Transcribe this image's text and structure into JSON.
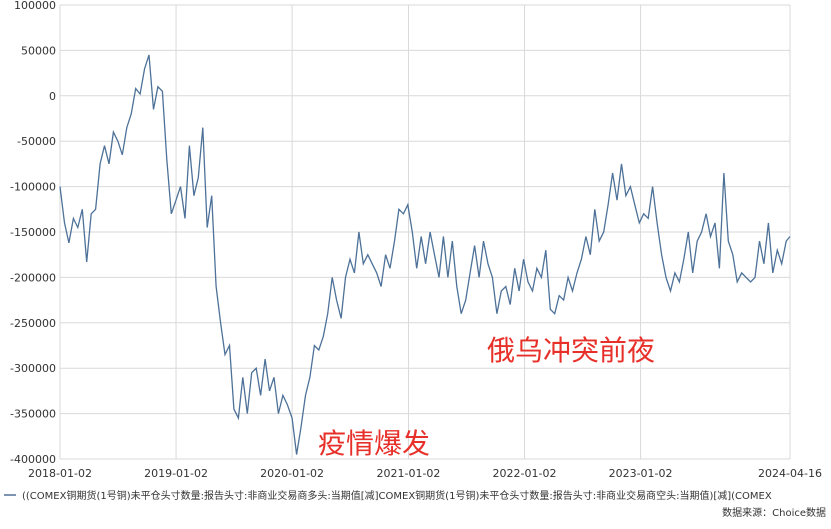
{
  "chart_data": {
    "type": "line",
    "x": [
      "2018-01-02",
      "2018-01-16",
      "2018-01-30",
      "2018-02-13",
      "2018-02-27",
      "2018-03-13",
      "2018-03-27",
      "2018-04-10",
      "2018-04-24",
      "2018-05-08",
      "2018-05-22",
      "2018-06-05",
      "2018-06-19",
      "2018-07-03",
      "2018-07-17",
      "2018-07-31",
      "2018-08-14",
      "2018-08-28",
      "2018-09-11",
      "2018-09-25",
      "2018-10-09",
      "2018-10-23",
      "2018-11-06",
      "2018-11-20",
      "2018-12-04",
      "2018-12-18",
      "2019-01-02",
      "2019-01-16",
      "2019-01-30",
      "2019-02-13",
      "2019-02-27",
      "2019-03-13",
      "2019-03-27",
      "2019-04-10",
      "2019-04-24",
      "2019-05-08",
      "2019-05-22",
      "2019-06-05",
      "2019-06-19",
      "2019-07-03",
      "2019-07-17",
      "2019-07-31",
      "2019-08-14",
      "2019-08-28",
      "2019-09-11",
      "2019-09-25",
      "2019-10-09",
      "2019-10-23",
      "2019-11-06",
      "2019-11-20",
      "2019-12-04",
      "2019-12-18",
      "2020-01-02",
      "2020-01-16",
      "2020-01-30",
      "2020-02-13",
      "2020-02-27",
      "2020-03-12",
      "2020-03-26",
      "2020-04-09",
      "2020-04-23",
      "2020-05-07",
      "2020-05-21",
      "2020-06-04",
      "2020-06-18",
      "2020-07-02",
      "2020-07-16",
      "2020-07-30",
      "2020-08-13",
      "2020-08-27",
      "2020-09-10",
      "2020-09-24",
      "2020-10-08",
      "2020-10-22",
      "2020-11-05",
      "2020-11-19",
      "2020-12-03",
      "2020-12-17",
      "2020-12-31",
      "2021-01-14",
      "2021-01-28",
      "2021-02-11",
      "2021-02-25",
      "2021-03-11",
      "2021-03-25",
      "2021-04-08",
      "2021-04-22",
      "2021-05-06",
      "2021-05-20",
      "2021-06-03",
      "2021-06-17",
      "2021-07-01",
      "2021-07-15",
      "2021-07-29",
      "2021-08-12",
      "2021-08-26",
      "2021-09-09",
      "2021-09-23",
      "2021-10-07",
      "2021-10-21",
      "2021-11-04",
      "2021-11-18",
      "2021-12-02",
      "2021-12-16",
      "2021-12-30",
      "2022-01-13",
      "2022-01-27",
      "2022-02-10",
      "2022-02-24",
      "2022-03-10",
      "2022-03-24",
      "2022-04-07",
      "2022-04-21",
      "2022-05-05",
      "2022-05-19",
      "2022-06-02",
      "2022-06-16",
      "2022-06-30",
      "2022-07-14",
      "2022-07-28",
      "2022-08-11",
      "2022-08-25",
      "2022-09-08",
      "2022-09-22",
      "2022-10-06",
      "2022-10-20",
      "2022-11-03",
      "2022-11-17",
      "2022-12-01",
      "2022-12-15",
      "2022-12-29",
      "2023-01-12",
      "2023-01-26",
      "2023-02-09",
      "2023-02-23",
      "2023-03-09",
      "2023-03-23",
      "2023-04-06",
      "2023-04-20",
      "2023-05-04",
      "2023-05-18",
      "2023-06-01",
      "2023-06-15",
      "2023-06-29",
      "2023-07-13",
      "2023-07-27",
      "2023-08-10",
      "2023-08-24",
      "2023-09-07",
      "2023-09-21",
      "2023-10-05",
      "2023-10-19",
      "2023-11-02",
      "2023-11-16",
      "2023-11-30",
      "2023-12-14",
      "2023-12-28",
      "2024-01-11",
      "2024-01-25",
      "2024-02-08",
      "2024-02-22",
      "2024-03-07",
      "2024-03-21",
      "2024-04-04",
      "2024-04-16"
    ],
    "series": [
      {
        "name": "((COMEX铜期货(1号铜)未平仓头寸数量:报告头寸:非商业交易商多头:当期值[减]COMEX铜期货(1号铜)未平仓头寸数量:报告头寸:非商业交易商空头:当期值)[减](COMEX",
        "color": "#4d7198",
        "values": [
          -100000,
          -140000,
          -162000,
          -135000,
          -145000,
          -125000,
          -183000,
          -130000,
          -125000,
          -75000,
          -55000,
          -75000,
          -40000,
          -50000,
          -65000,
          -35000,
          -20000,
          8000,
          2000,
          30000,
          45000,
          -15000,
          10000,
          5000,
          -70000,
          -130000,
          -115000,
          -100000,
          -135000,
          -55000,
          -110000,
          -90000,
          -35000,
          -145000,
          -110000,
          -210000,
          -250000,
          -285000,
          -275000,
          -345000,
          -355000,
          -310000,
          -350000,
          -305000,
          -300000,
          -330000,
          -290000,
          -325000,
          -310000,
          -350000,
          -330000,
          -340000,
          -355000,
          -395000,
          -365000,
          -330000,
          -310000,
          -275000,
          -280000,
          -265000,
          -240000,
          -200000,
          -225000,
          -245000,
          -200000,
          -180000,
          -195000,
          -150000,
          -185000,
          -175000,
          -185000,
          -195000,
          -210000,
          -175000,
          -190000,
          -160000,
          -125000,
          -130000,
          -120000,
          -150000,
          -190000,
          -155000,
          -185000,
          -150000,
          -175000,
          -200000,
          -155000,
          -200000,
          -160000,
          -210000,
          -240000,
          -225000,
          -195000,
          -165000,
          -200000,
          -160000,
          -185000,
          -200000,
          -240000,
          -215000,
          -210000,
          -230000,
          -190000,
          -215000,
          -180000,
          -205000,
          -215000,
          -190000,
          -200000,
          -170000,
          -235000,
          -240000,
          -220000,
          -225000,
          -200000,
          -215000,
          -195000,
          -180000,
          -155000,
          -175000,
          -125000,
          -160000,
          -150000,
          -120000,
          -85000,
          -115000,
          -75000,
          -110000,
          -100000,
          -120000,
          -140000,
          -130000,
          -135000,
          -100000,
          -140000,
          -175000,
          -200000,
          -215000,
          -195000,
          -205000,
          -180000,
          -150000,
          -195000,
          -160000,
          -150000,
          -130000,
          -155000,
          -140000,
          -190000,
          -85000,
          -160000,
          -175000,
          -205000,
          -195000,
          -200000,
          -205000,
          -200000,
          -160000,
          -185000,
          -140000,
          -195000,
          -170000,
          -185000,
          -160000,
          -155000
        ]
      }
    ],
    "xlim": [
      "2018-01-02",
      "2024-04-16"
    ],
    "xticks": [
      "2018-01-02",
      "2019-01-02",
      "2020-01-02",
      "2021-01-02",
      "2022-01-02",
      "2023-01-02",
      "2024-04-16"
    ],
    "ylim": [
      -400000,
      100000
    ],
    "yticks": [
      100000,
      50000,
      0,
      -50000,
      -100000,
      -150000,
      -200000,
      -250000,
      -300000,
      -350000,
      -400000
    ],
    "grid": true,
    "annotations": [
      "疫情爆发",
      "俄乌冲突前夜"
    ],
    "source": "数据来源：Choice数据"
  }
}
